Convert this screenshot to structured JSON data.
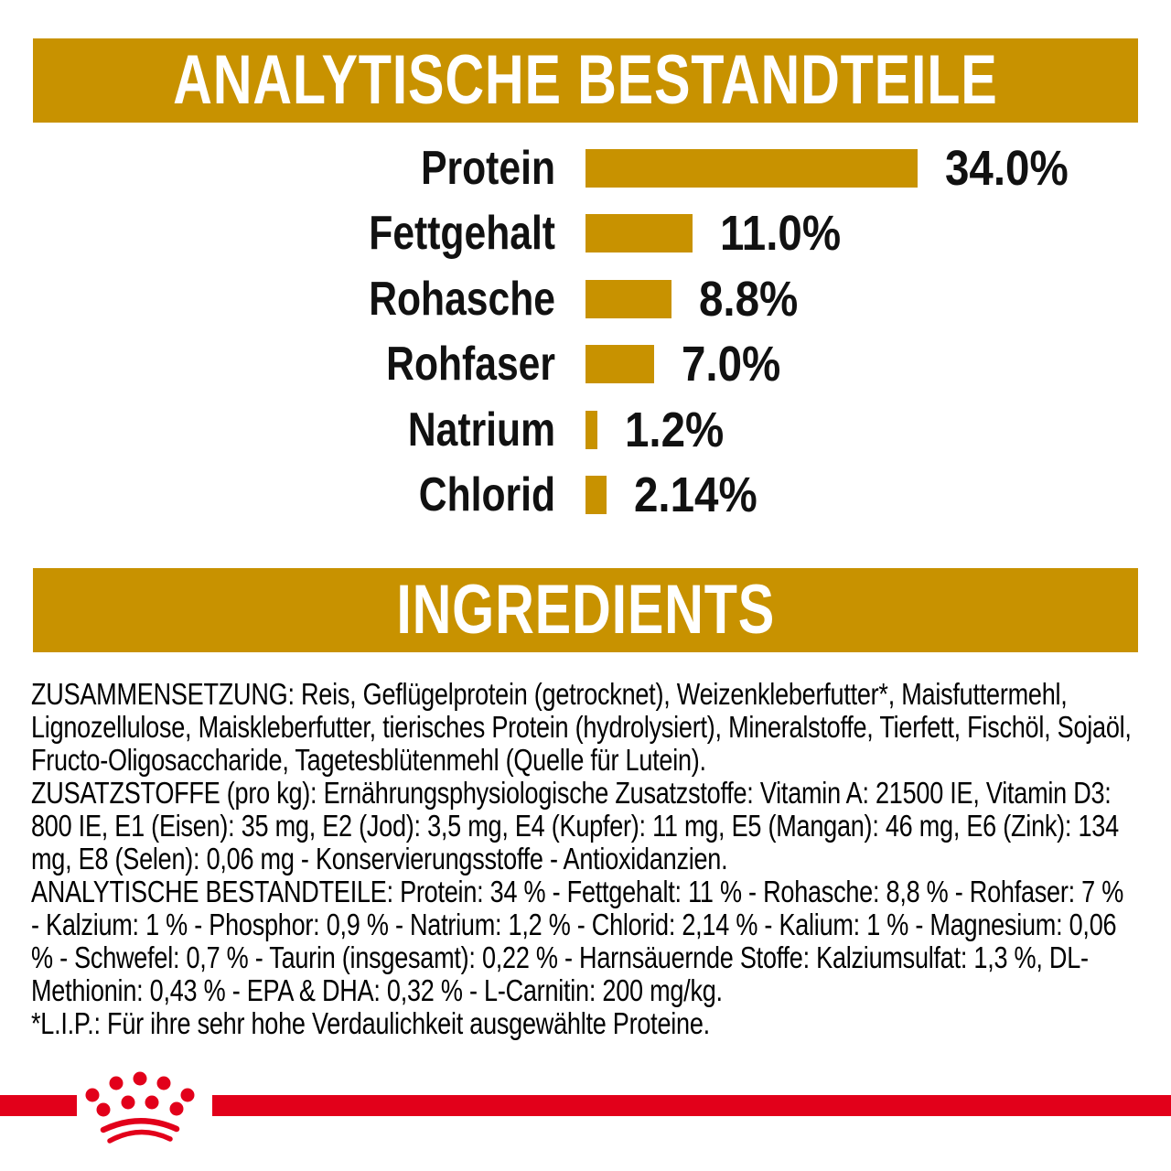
{
  "banners": {
    "analytical": "ANALYTISCHE BESTANDTEILE",
    "ingredients": "INGREDIENTS"
  },
  "chart_data": {
    "type": "bar",
    "orientation": "horizontal",
    "title": "ANALYTISCHE BESTANDTEILE",
    "categories": [
      "Protein",
      "Fettgehalt",
      "Rohasche",
      "Rohfaser",
      "Natrium",
      "Chlorid"
    ],
    "values": [
      34.0,
      11.0,
      8.8,
      7.0,
      1.2,
      2.14
    ],
    "value_labels": [
      "34.0%",
      "11.0%",
      "8.8%",
      "7.0%",
      "1.2%",
      "2.14%"
    ],
    "unit": "%",
    "xlim": [
      0,
      34
    ],
    "grid": false,
    "legend": false,
    "bar_color": "#C89200"
  },
  "ingredients_text": {
    "composition": "ZUSAMMENSETZUNG: Reis, Geflügelprotein (getrocknet), Weizenkleberfutter*, Maisfuttermehl, Lignozellulose, Maiskleberfutter, tierisches Protein (hydrolysiert), Mineralstoffe, Tierfett, Fischöl, Sojaöl, Fructo-Oligosaccharide, Tagetesblütenmehl (Quelle für Lutein).",
    "additives": "ZUSATZSTOFFE (pro kg): Ernährungsphysiologische Zusatzstoffe: Vitamin A: 21500 IE, Vitamin D3: 800 IE, E1 (Eisen): 35 mg, E2 (Jod): 3,5 mg, E4 (Kupfer): 11 mg, E5 (Mangan): 46 mg, E6 (Zink): 134 mg, E8 (Selen): 0,06 mg - Konservierungsstoffe - Antioxidanzien.",
    "analytical_constituents": "ANALYTISCHE BESTANDTEILE: Protein: 34 % - Fettgehalt: 11 % - Rohasche: 8,8 % - Rohfaser: 7 % - Kalzium: 1 % - Phosphor: 0,9 % - Natrium: 1,2 % - Chlorid: 2,14 % - Kalium: 1 % - Magnesium: 0,06 % - Schwefel: 0,7 % - Taurin (insgesamt): 0,22 % - Harnsäuernde Stoffe: Kalziumsulfat: 1,3 %, DL-Methionin: 0,43 % - EPA & DHA: 0,32 % - L-Carnitin: 200 mg/kg.",
    "lip_note": "*L.I.P.: Für ihre sehr hohe Verdaulichkeit ausgewählte Proteine."
  },
  "footer": {
    "crown_icon": "royal-canin-crown-icon",
    "stripe_color": "#E2001A"
  },
  "colors": {
    "gold": "#C89200",
    "red": "#E2001A",
    "text": "#000000",
    "banner_text": "#FFFFFF"
  }
}
